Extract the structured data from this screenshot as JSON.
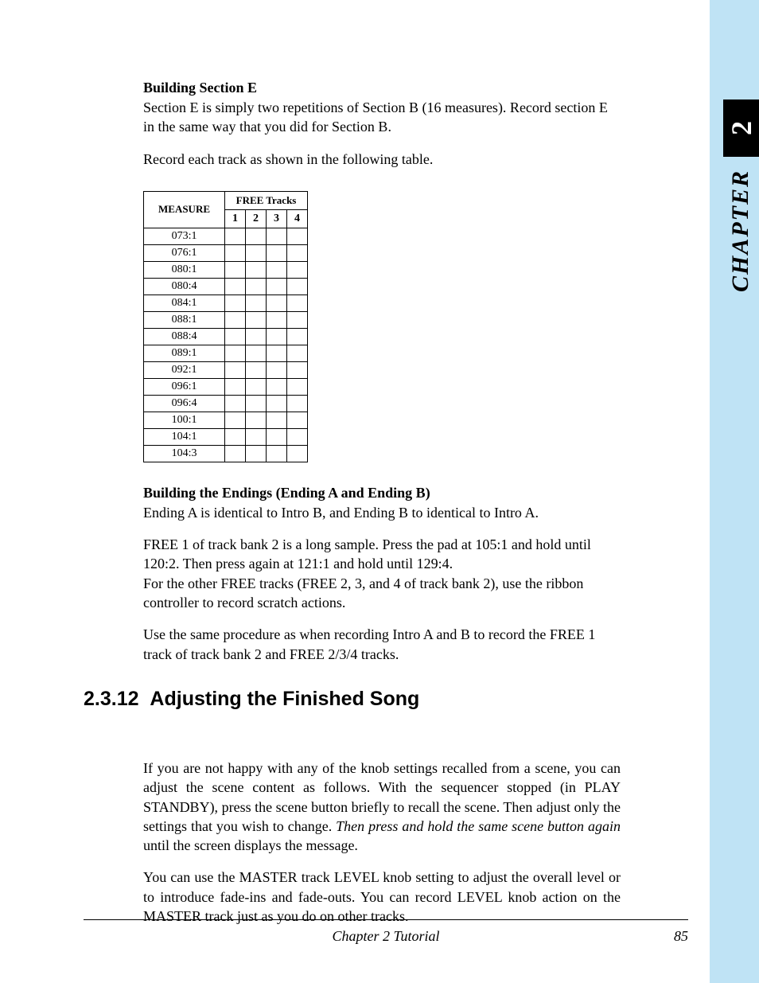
{
  "sideTab": {
    "number": "2",
    "label": "CHAPTER"
  },
  "sectionE": {
    "heading": "Building Section E",
    "para1": "Section E is simply two repetitions of Section B (16 measures). Record section E in the same way that you did for Section B.",
    "para2": "Record each track as shown in the following table."
  },
  "table": {
    "measureHeader": "MEASURE",
    "tracksHeader": "FREE Tracks",
    "trackNums": [
      "1",
      "2",
      "3",
      "4"
    ],
    "rows": [
      "073:1",
      "076:1",
      "080:1",
      "080:4",
      "084:1",
      "088:1",
      "088:4",
      "089:1",
      "092:1",
      "096:1",
      "096:4",
      "100:1",
      "104:1",
      "104:3"
    ]
  },
  "endings": {
    "heading": "Building the Endings (Ending A and Ending B)",
    "para1": "Ending A is identical to Intro B, and Ending B to identical to Intro A.",
    "para2": "FREE 1 of track bank 2 is a long sample. Press the pad at 105:1 and hold until 120:2. Then press again at 121:1 and hold until 129:4.",
    "para3": "For the other FREE tracks (FREE 2, 3, and 4 of track bank 2), use the ribbon controller to record scratch actions.",
    "para4": "Use the same procedure as when recording Intro A and B to record the FREE 1 track of track bank 2 and FREE 2/3/4 tracks."
  },
  "adjusting": {
    "number": "2.3.12",
    "title": "Adjusting the Finished Song",
    "para1a": "If you are not happy with any of the knob settings recalled from a scene, you can adjust the scene content as follows. With the sequencer stopped (in PLAY STANDBY), press the scene button briefly to recall the scene. Then adjust only the settings that you wish to change. ",
    "para1b": "Then press and hold the same scene button again",
    "para1c": " until the screen displays the ",
    "para1d": " message.",
    "para2": "You can use the MASTER track LEVEL knob setting to adjust the overall level or to introduce fade-ins and fade-outs. You can record LEVEL knob action on the MASTER track just as you do on other tracks."
  },
  "footer": {
    "center": "Chapter 2   Tutorial",
    "pageNum": "85"
  }
}
